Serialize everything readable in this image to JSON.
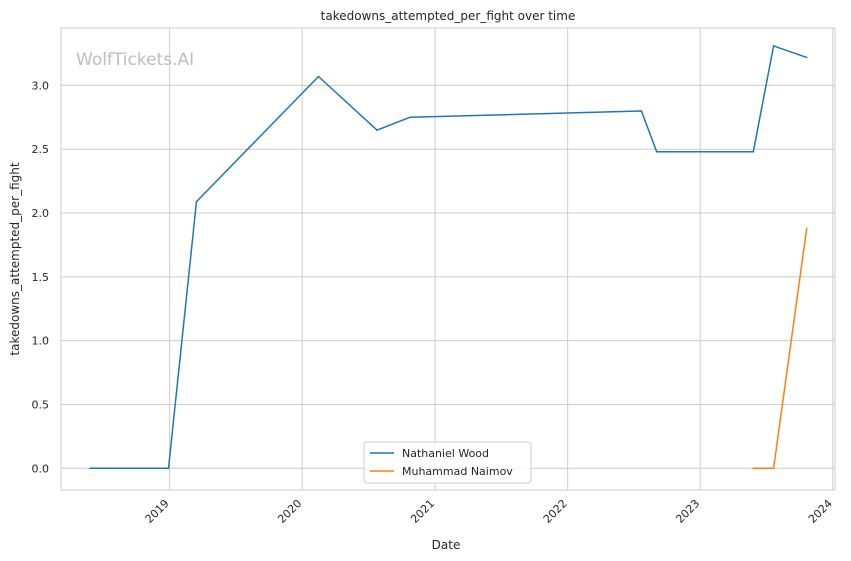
{
  "chart_data": {
    "type": "line",
    "title": "takedowns_attempted_per_fight over time",
    "xlabel": "Date",
    "ylabel": "takedowns_attempted_per_fight",
    "watermark": "WolfTickets.AI",
    "x_ticks": [
      "2019",
      "2020",
      "2021",
      "2022",
      "2023",
      "2024"
    ],
    "y_ticks": [
      "0.0",
      "0.5",
      "1.0",
      "1.5",
      "2.0",
      "2.5",
      "3.0"
    ],
    "xlim": [
      "2018-03-08",
      "2024-01-07"
    ],
    "ylim": [
      -0.17,
      3.45
    ],
    "grid": true,
    "legend_position": "bottom-center",
    "series": [
      {
        "name": "Nathaniel Wood",
        "color": "#1f77b4",
        "x": [
          "2018-05-27",
          "2018-12-29",
          "2019-03-16",
          "2020-02-15",
          "2020-07-25",
          "2020-10-24",
          "2022-07-23",
          "2022-09-03",
          "2023-05-27",
          "2023-07-22",
          "2023-10-21"
        ],
        "y": [
          0.0,
          0.0,
          2.09,
          3.07,
          2.65,
          2.75,
          2.8,
          2.48,
          2.48,
          3.31,
          3.22
        ]
      },
      {
        "name": "Muhammad Naimov",
        "color": "#ff7f0e",
        "x": [
          "2023-05-27",
          "2023-07-22",
          "2023-10-21"
        ],
        "y": [
          0.0,
          0.0,
          1.88
        ]
      }
    ]
  }
}
